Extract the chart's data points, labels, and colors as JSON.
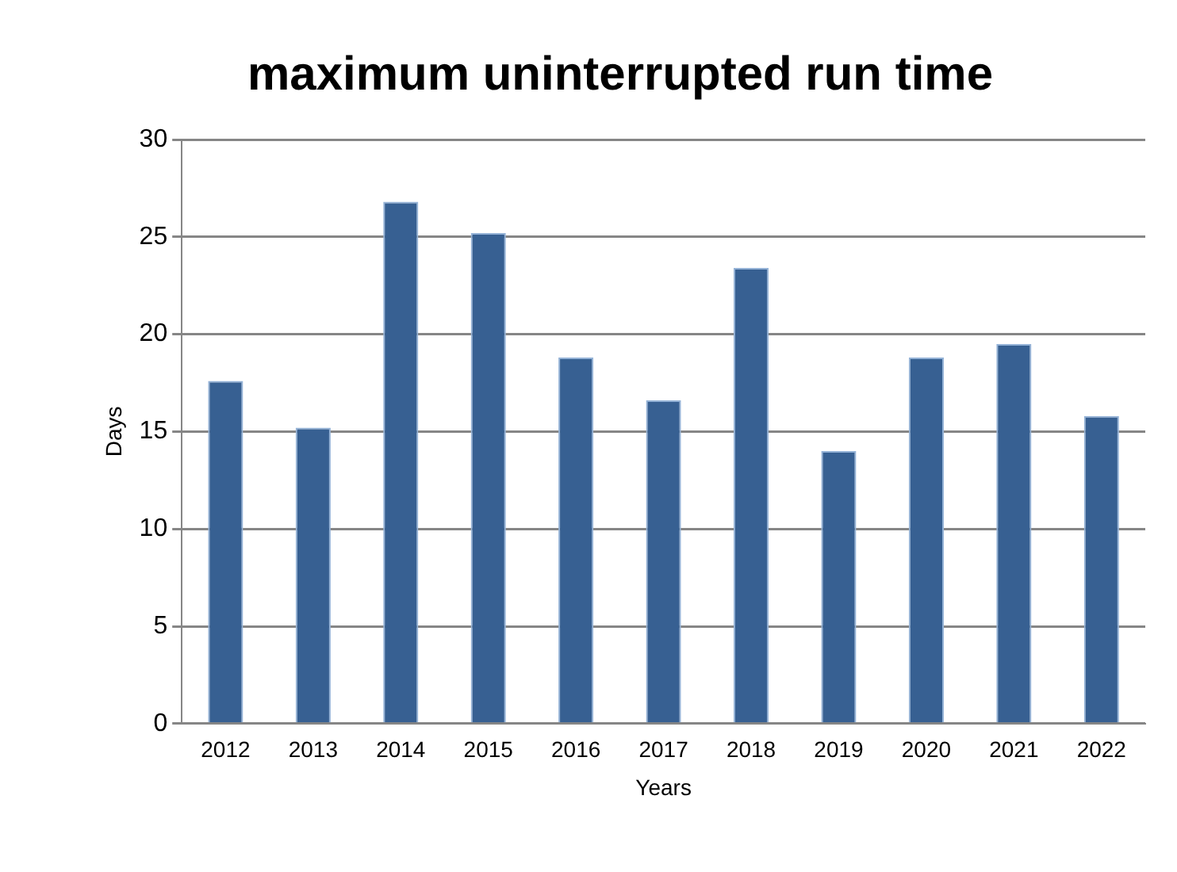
{
  "chart_data": {
    "type": "bar",
    "title": "maximum uninterrupted run time",
    "xlabel": "Years",
    "ylabel": "Days",
    "categories": [
      "2012",
      "2013",
      "2014",
      "2015",
      "2016",
      "2017",
      "2018",
      "2019",
      "2020",
      "2021",
      "2022"
    ],
    "values": [
      17.6,
      15.2,
      26.8,
      25.2,
      18.8,
      16.6,
      23.4,
      14.0,
      18.8,
      19.5,
      15.8
    ],
    "color": "#376092",
    "ylim": [
      0,
      30
    ],
    "yticks": [
      0,
      5,
      10,
      15,
      20,
      25,
      30
    ],
    "grid": "y",
    "legend": false
  }
}
